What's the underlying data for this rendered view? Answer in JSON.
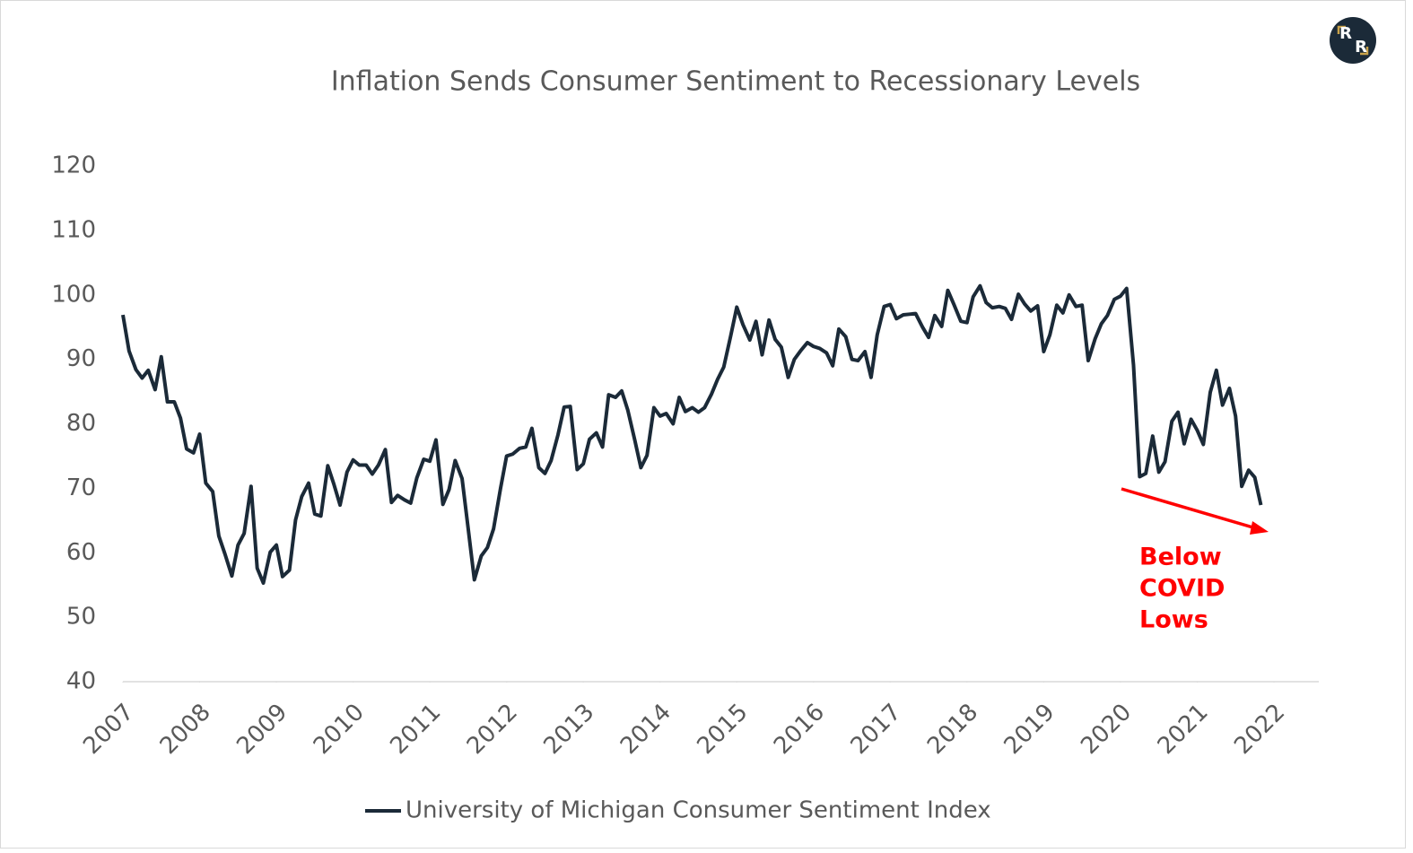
{
  "chart_data": {
    "type": "line",
    "title": "Inflation Sends Consumer Sentiment to Recessionary Levels",
    "logo": [
      "R",
      "R"
    ],
    "annotation": [
      "Below",
      "COVID",
      "Lows"
    ],
    "annotation_color": "#ff0000",
    "xlim": [
      2007,
      2022
    ],
    "xticks": [
      2007,
      2008,
      2009,
      2010,
      2011,
      2012,
      2013,
      2014,
      2015,
      2016,
      2017,
      2018,
      2019,
      2020,
      2021,
      2022
    ],
    "ylim": [
      40,
      120
    ],
    "yticks": [
      40,
      50,
      60,
      70,
      80,
      90,
      100,
      110,
      120
    ],
    "grid": false,
    "legend": "bottom",
    "x": [
      2007.0,
      2007.08,
      2007.17,
      2007.25,
      2007.33,
      2007.42,
      2007.5,
      2007.58,
      2007.67,
      2007.75,
      2007.83,
      2007.92,
      2008.0,
      2008.08,
      2008.17,
      2008.25,
      2008.33,
      2008.42,
      2008.5,
      2008.58,
      2008.67,
      2008.75,
      2008.83,
      2008.92,
      2009.0,
      2009.08,
      2009.17,
      2009.25,
      2009.33,
      2009.42,
      2009.5,
      2009.58,
      2009.67,
      2009.75,
      2009.83,
      2009.92,
      2010.0,
      2010.08,
      2010.17,
      2010.25,
      2010.33,
      2010.42,
      2010.5,
      2010.58,
      2010.67,
      2010.75,
      2010.83,
      2010.92,
      2011.0,
      2011.08,
      2011.17,
      2011.25,
      2011.33,
      2011.42,
      2011.5,
      2011.58,
      2011.67,
      2011.75,
      2011.83,
      2011.92,
      2012.0,
      2012.08,
      2012.17,
      2012.25,
      2012.33,
      2012.42,
      2012.5,
      2012.58,
      2012.67,
      2012.75,
      2012.83,
      2012.92,
      2013.0,
      2013.08,
      2013.17,
      2013.25,
      2013.33,
      2013.42,
      2013.5,
      2013.58,
      2013.67,
      2013.75,
      2013.83,
      2013.92,
      2014.0,
      2014.08,
      2014.17,
      2014.25,
      2014.33,
      2014.42,
      2014.5,
      2014.58,
      2014.67,
      2014.75,
      2014.83,
      2014.92,
      2015.0,
      2015.08,
      2015.17,
      2015.25,
      2015.33,
      2015.42,
      2015.5,
      2015.58,
      2015.67,
      2015.75,
      2015.83,
      2015.92,
      2016.0,
      2016.08,
      2016.17,
      2016.25,
      2016.33,
      2016.42,
      2016.5,
      2016.58,
      2016.67,
      2016.75,
      2016.83,
      2016.92,
      2017.0,
      2017.08,
      2017.17,
      2017.25,
      2017.33,
      2017.42,
      2017.5,
      2017.58,
      2017.67,
      2017.75,
      2017.83,
      2017.92,
      2018.0,
      2018.08,
      2018.17,
      2018.25,
      2018.33,
      2018.42,
      2018.5,
      2018.58,
      2018.67,
      2018.75,
      2018.83,
      2018.92,
      2019.0,
      2019.08,
      2019.17,
      2019.25,
      2019.33,
      2019.42,
      2019.5,
      2019.58,
      2019.67,
      2019.75,
      2019.83,
      2019.92,
      2020.0,
      2020.08,
      2020.17,
      2020.25,
      2020.33,
      2020.42,
      2020.5,
      2020.58,
      2020.67,
      2020.75,
      2020.83,
      2020.92,
      2021.0,
      2021.08,
      2021.17,
      2021.25,
      2021.33,
      2021.42,
      2021.5,
      2021.58,
      2021.67,
      2021.75,
      2021.83
    ],
    "series": [
      {
        "name": "University of Michigan Consumer Sentiment Index",
        "color": "#1b2a38",
        "values": [
          96.9,
          91.3,
          88.4,
          87.1,
          88.3,
          85.3,
          90.4,
          83.4,
          83.4,
          80.9,
          76.1,
          75.5,
          78.4,
          70.8,
          69.5,
          62.6,
          59.8,
          56.4,
          61.2,
          63.0,
          70.3,
          57.6,
          55.3,
          60.1,
          61.2,
          56.3,
          57.3,
          65.1,
          68.7,
          70.8,
          66.0,
          65.7,
          73.5,
          70.6,
          67.4,
          72.5,
          74.4,
          73.6,
          73.6,
          72.2,
          73.6,
          76.0,
          67.8,
          68.9,
          68.2,
          67.7,
          71.6,
          74.5,
          74.2,
          77.5,
          67.5,
          69.8,
          74.3,
          71.5,
          63.7,
          55.8,
          59.5,
          60.8,
          63.7,
          69.9,
          75.0,
          75.3,
          76.2,
          76.4,
          79.3,
          73.2,
          72.3,
          74.3,
          78.3,
          82.6,
          82.7,
          72.9,
          73.8,
          77.6,
          78.6,
          76.4,
          84.5,
          84.1,
          85.1,
          82.1,
          77.5,
          73.2,
          75.1,
          82.5,
          81.2,
          81.6,
          80.0,
          84.1,
          81.9,
          82.5,
          81.8,
          82.5,
          84.6,
          86.9,
          88.8,
          93.6,
          98.1,
          95.4,
          93.0,
          95.9,
          90.7,
          96.1,
          93.1,
          91.9,
          87.2,
          90.0,
          91.3,
          92.6,
          92.0,
          91.7,
          91.0,
          89.0,
          94.7,
          93.5,
          90.0,
          89.8,
          91.2,
          87.2,
          93.8,
          98.2,
          98.5,
          96.3,
          96.9,
          97.0,
          97.1,
          95.0,
          93.4,
          96.8,
          95.1,
          100.7,
          98.5,
          95.9,
          95.7,
          99.7,
          101.4,
          98.8,
          98.0,
          98.2,
          97.9,
          96.2,
          100.1,
          98.6,
          97.5,
          98.3,
          91.2,
          93.8,
          98.4,
          97.2,
          100.0,
          98.2,
          98.4,
          89.8,
          93.2,
          95.5,
          96.8,
          99.3,
          99.8,
          101.0,
          89.1,
          71.8,
          72.3,
          78.1,
          72.5,
          74.1,
          80.4,
          81.8,
          76.9,
          80.7,
          79.0,
          76.8,
          84.9,
          88.3,
          82.9,
          85.5,
          81.2,
          70.3,
          72.8,
          71.7,
          67.4
        ]
      }
    ]
  }
}
